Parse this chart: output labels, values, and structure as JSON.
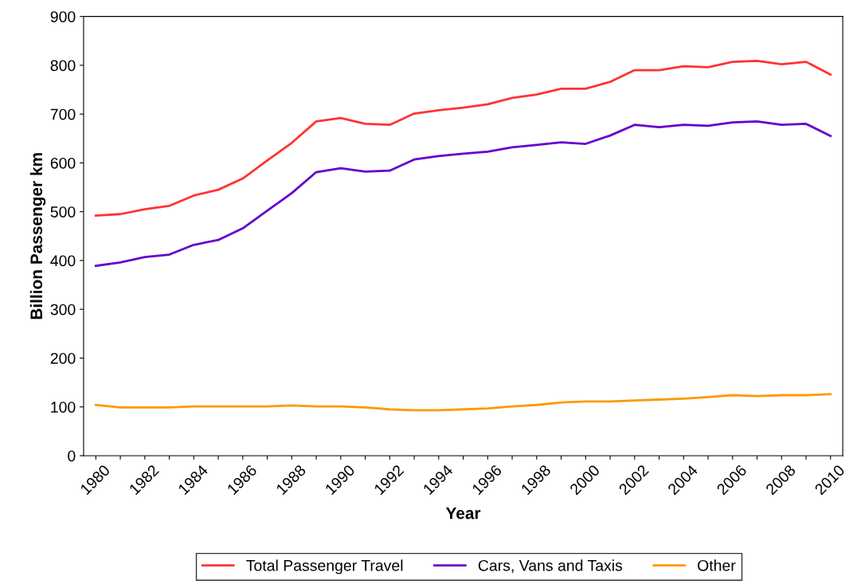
{
  "chart_data": {
    "type": "line",
    "xlabel": "Year",
    "ylabel": "Billion Passenger km",
    "categories": [
      "1980",
      null,
      "1982",
      null,
      "1984",
      null,
      "1986",
      null,
      "1988",
      null,
      "1990",
      null,
      "1992",
      null,
      "1994",
      null,
      "1996",
      null,
      "1998",
      null,
      "2000",
      null,
      "2002",
      null,
      "2004",
      null,
      "2006",
      null,
      "2008",
      null,
      "2010"
    ],
    "series": [
      {
        "name": "Total Passenger Travel",
        "color": "#ff3333",
        "values": [
          492,
          495,
          505,
          512,
          533,
          545,
          568,
          605,
          641,
          685,
          692,
          680,
          678,
          701,
          708,
          713,
          720,
          733,
          740,
          752,
          752,
          766,
          790,
          790,
          798,
          796,
          807,
          809,
          802,
          807,
          781
        ]
      },
      {
        "name": "Cars, Vans and Taxis",
        "color": "#6600cc",
        "values": [
          389,
          396,
          407,
          412,
          432,
          442,
          466,
          502,
          538,
          581,
          589,
          582,
          584,
          607,
          614,
          619,
          623,
          632,
          637,
          642,
          639,
          656,
          678,
          673,
          678,
          676,
          683,
          685,
          678,
          680,
          655
        ]
      },
      {
        "name": "Other",
        "color": "#ff9900",
        "values": [
          104,
          99,
          99,
          99,
          101,
          101,
          101,
          101,
          103,
          101,
          101,
          99,
          95,
          93,
          93,
          95,
          97,
          101,
          104,
          109,
          111,
          111,
          113,
          115,
          117,
          120,
          124,
          122,
          124,
          124,
          126
        ]
      }
    ],
    "ylim": [
      0,
      900
    ],
    "yticks": [
      0,
      100,
      200,
      300,
      400,
      500,
      600,
      700,
      800,
      900
    ],
    "grid": false,
    "legend": "bottom",
    "marker": "none",
    "line_style": "solid"
  }
}
